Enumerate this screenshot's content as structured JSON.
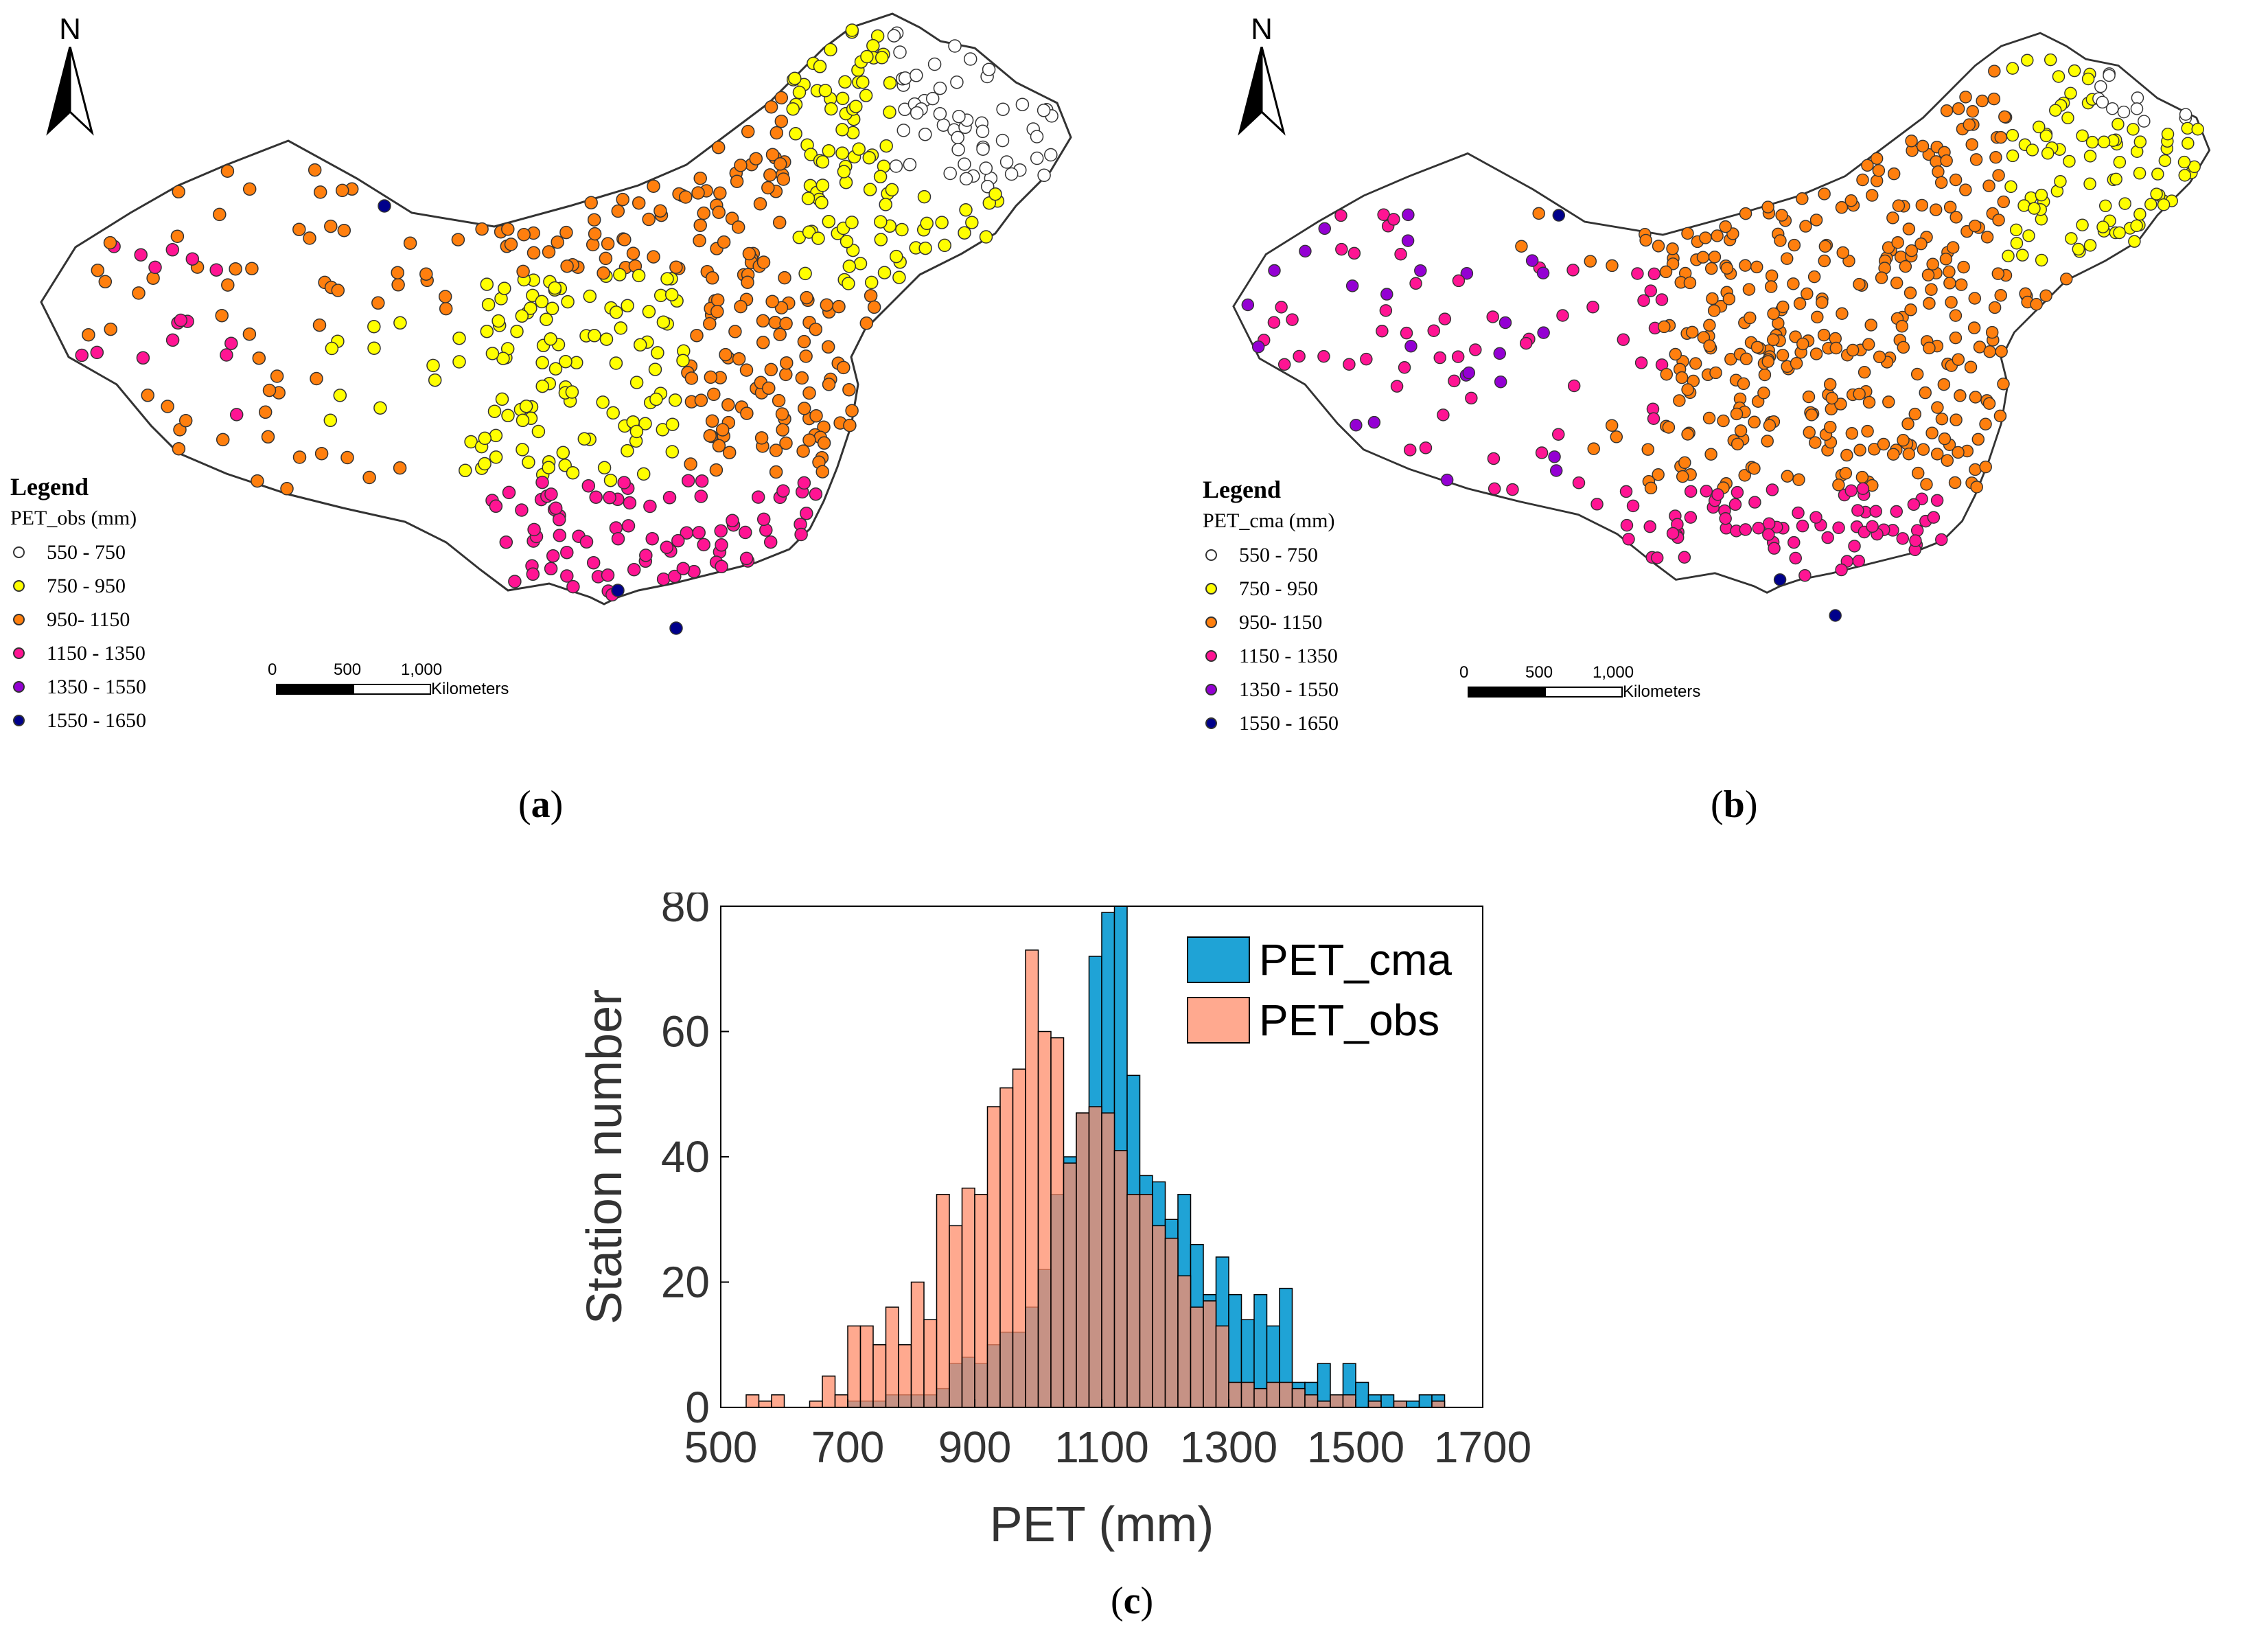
{
  "map_a": {
    "north_label": "N",
    "legend_title": "Legend",
    "legend_field": "PET_obs (mm)",
    "legend_items": [
      {
        "label": "550 - 750",
        "color": "#ffffff"
      },
      {
        "label": "750 - 950",
        "color": "#ffff00"
      },
      {
        "label": "950- 1150",
        "color": "#ff7f0e"
      },
      {
        "label": "1150 - 1350",
        "color": "#ff1493"
      },
      {
        "label": "1350 - 1550",
        "color": "#9400d3"
      },
      {
        "label": "1550 - 1650",
        "color": "#00008b"
      }
    ],
    "scale_ticks": [
      "0",
      "500",
      "1,000"
    ],
    "scale_unit": "Kilometers",
    "caption_letter": "a"
  },
  "map_b": {
    "north_label": "N",
    "legend_title": "Legend",
    "legend_field": "PET_cma (mm)",
    "legend_items": [
      {
        "label": "550 - 750",
        "color": "#ffffff"
      },
      {
        "label": "750 - 950",
        "color": "#ffff00"
      },
      {
        "label": "950- 1150",
        "color": "#ff7f0e"
      },
      {
        "label": "1150 - 1350",
        "color": "#ff1493"
      },
      {
        "label": "1350 - 1550",
        "color": "#9400d3"
      },
      {
        "label": "1550 - 1650",
        "color": "#00008b"
      }
    ],
    "scale_ticks": [
      "0",
      "500",
      "1,000"
    ],
    "scale_unit": "Kilometers",
    "caption_letter": "b"
  },
  "chart_data": {
    "type": "bar",
    "xlabel": "PET (mm)",
    "ylabel": "Station number",
    "xlim": [
      500,
      1700
    ],
    "ylim": [
      0,
      80
    ],
    "xticks": [
      500,
      700,
      900,
      1100,
      1300,
      1500,
      1700
    ],
    "yticks": [
      0,
      20,
      40,
      60,
      80
    ],
    "bin_width": 20,
    "bin_starts": [
      540,
      560,
      580,
      600,
      620,
      640,
      660,
      680,
      700,
      720,
      740,
      760,
      780,
      800,
      820,
      840,
      860,
      880,
      900,
      920,
      940,
      960,
      980,
      1000,
      1020,
      1040,
      1060,
      1080,
      1100,
      1120,
      1140,
      1160,
      1180,
      1200,
      1220,
      1240,
      1260,
      1280,
      1300,
      1320,
      1340,
      1360,
      1380,
      1400,
      1420,
      1440,
      1460,
      1480,
      1500,
      1520,
      1540,
      1560,
      1580,
      1600,
      1620
    ],
    "legend_position": "top-right",
    "series": [
      {
        "name": "PET_cma",
        "color": "#1fa3d6",
        "values": [
          0,
          0,
          0,
          0,
          0,
          0,
          0,
          0,
          1,
          1,
          1,
          2,
          2,
          2,
          2,
          3,
          7,
          8,
          7,
          10,
          12,
          12,
          16,
          22,
          34,
          40,
          47,
          72,
          79,
          80,
          53,
          37,
          36,
          30,
          34,
          26,
          18,
          24,
          18,
          14,
          18,
          13,
          19,
          4,
          4,
          7,
          2,
          7,
          4,
          2,
          2,
          1,
          1,
          2,
          2
        ]
      },
      {
        "name": "PET_obs",
        "color": "#ff8c69",
        "values": [
          2,
          1,
          2,
          0,
          0,
          1,
          5,
          2,
          13,
          13,
          10,
          16,
          10,
          20,
          14,
          34,
          29,
          35,
          34,
          48,
          51,
          54,
          73,
          60,
          59,
          39,
          47,
          48,
          47,
          41,
          34,
          34,
          29,
          27,
          21,
          16,
          17,
          13,
          4,
          4,
          3,
          4,
          4,
          3,
          2,
          1,
          2,
          2,
          0,
          1,
          0,
          1,
          0,
          0,
          1
        ]
      }
    ]
  },
  "caption_c_letter": "c"
}
